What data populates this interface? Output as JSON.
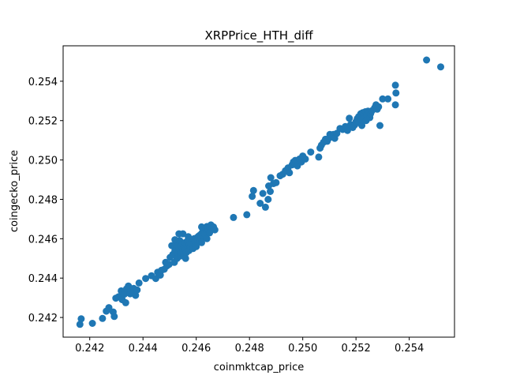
{
  "chart_data": {
    "type": "scatter",
    "title": "XRPPrice_HTH_diff",
    "xlabel": "coinmktcap_price",
    "ylabel": "coingecko_price",
    "xlim": [
      0.241,
      0.2557
    ],
    "ylim": [
      0.241,
      0.2558
    ],
    "xticks": [
      "0.242",
      "0.244",
      "0.246",
      "0.248",
      "0.250",
      "0.252",
      "0.254"
    ],
    "yticks": [
      "0.242",
      "0.244",
      "0.246",
      "0.248",
      "0.250",
      "0.252",
      "0.254"
    ],
    "xtick_values": [
      0.242,
      0.244,
      0.246,
      0.248,
      0.25,
      0.252,
      0.254
    ],
    "ytick_values": [
      0.242,
      0.244,
      0.246,
      0.248,
      0.25,
      0.252,
      0.254
    ],
    "grid": false,
    "marker_color": "#1f77b4",
    "points": [
      [
        0.24163,
        0.24165
      ],
      [
        0.24168,
        0.24193
      ],
      [
        0.2421,
        0.2417
      ],
      [
        0.24248,
        0.24195
      ],
      [
        0.24262,
        0.24232
      ],
      [
        0.24272,
        0.2425
      ],
      [
        0.24288,
        0.24228
      ],
      [
        0.24292,
        0.24205
      ],
      [
        0.24298,
        0.24298
      ],
      [
        0.24308,
        0.24305
      ],
      [
        0.24318,
        0.24335
      ],
      [
        0.24322,
        0.2429
      ],
      [
        0.2433,
        0.24318
      ],
      [
        0.24335,
        0.24275
      ],
      [
        0.24338,
        0.24345
      ],
      [
        0.24345,
        0.2436
      ],
      [
        0.24352,
        0.2432
      ],
      [
        0.2436,
        0.24335
      ],
      [
        0.24365,
        0.24348
      ],
      [
        0.24372,
        0.24312
      ],
      [
        0.24378,
        0.2434
      ],
      [
        0.24385,
        0.24375
      ],
      [
        0.2441,
        0.24398
      ],
      [
        0.24432,
        0.24412
      ],
      [
        0.24448,
        0.24398
      ],
      [
        0.24455,
        0.2443
      ],
      [
        0.24465,
        0.24415
      ],
      [
        0.2447,
        0.2444
      ],
      [
        0.2448,
        0.24445
      ],
      [
        0.24485,
        0.2448
      ],
      [
        0.2449,
        0.24462
      ],
      [
        0.24498,
        0.2447
      ],
      [
        0.24502,
        0.24505
      ],
      [
        0.24508,
        0.24565
      ],
      [
        0.24512,
        0.2452
      ],
      [
        0.24518,
        0.2448
      ],
      [
        0.2452,
        0.2454
      ],
      [
        0.24525,
        0.2457
      ],
      [
        0.24528,
        0.245
      ],
      [
        0.24532,
        0.24525
      ],
      [
        0.24535,
        0.2455
      ],
      [
        0.24538,
        0.2459
      ],
      [
        0.2454,
        0.24512
      ],
      [
        0.24542,
        0.24565
      ],
      [
        0.24545,
        0.2453
      ],
      [
        0.24548,
        0.24575
      ],
      [
        0.2455,
        0.2454
      ],
      [
        0.24553,
        0.2452
      ],
      [
        0.24556,
        0.2456
      ],
      [
        0.24558,
        0.2458
      ],
      [
        0.2456,
        0.24545
      ],
      [
        0.24563,
        0.2453
      ],
      [
        0.24565,
        0.24568
      ],
      [
        0.24568,
        0.2459
      ],
      [
        0.2457,
        0.24555
      ],
      [
        0.24573,
        0.2454
      ],
      [
        0.24575,
        0.24572
      ],
      [
        0.24578,
        0.2456
      ],
      [
        0.24582,
        0.2459
      ],
      [
        0.24585,
        0.2457
      ],
      [
        0.24588,
        0.2455
      ],
      [
        0.24592,
        0.246
      ],
      [
        0.24595,
        0.24585
      ],
      [
        0.24598,
        0.24568
      ],
      [
        0.24602,
        0.24605
      ],
      [
        0.24605,
        0.2459
      ],
      [
        0.24608,
        0.24612
      ],
      [
        0.24612,
        0.24598
      ],
      [
        0.24615,
        0.2462
      ],
      [
        0.24618,
        0.24605
      ],
      [
        0.24622,
        0.2463
      ],
      [
        0.24625,
        0.24615
      ],
      [
        0.24628,
        0.2464
      ],
      [
        0.24632,
        0.24625
      ],
      [
        0.24635,
        0.2465
      ],
      [
        0.2464,
        0.24662
      ],
      [
        0.24645,
        0.24648
      ],
      [
        0.2465,
        0.2466
      ],
      [
        0.24655,
        0.2467
      ],
      [
        0.2466,
        0.2465
      ],
      [
        0.24665,
        0.2466
      ],
      [
        0.2467,
        0.24645
      ],
      [
        0.2456,
        0.245
      ],
      [
        0.24535,
        0.24625
      ],
      [
        0.2455,
        0.24625
      ],
      [
        0.2457,
        0.2461
      ],
      [
        0.2452,
        0.24595
      ],
      [
        0.246,
        0.2456
      ],
      [
        0.2462,
        0.2458
      ],
      [
        0.2464,
        0.246
      ],
      [
        0.2465,
        0.2463
      ],
      [
        0.2462,
        0.2466
      ],
      [
        0.2474,
        0.24708
      ],
      [
        0.2479,
        0.24722
      ],
      [
        0.2481,
        0.24815
      ],
      [
        0.24815,
        0.24845
      ],
      [
        0.2484,
        0.2478
      ],
      [
        0.2485,
        0.2483
      ],
      [
        0.2486,
        0.2476
      ],
      [
        0.2487,
        0.248
      ],
      [
        0.24872,
        0.24868
      ],
      [
        0.24878,
        0.2484
      ],
      [
        0.2488,
        0.2491
      ],
      [
        0.2489,
        0.2488
      ],
      [
        0.249,
        0.24885
      ],
      [
        0.24915,
        0.2492
      ],
      [
        0.24925,
        0.24928
      ],
      [
        0.24935,
        0.24945
      ],
      [
        0.24945,
        0.2496
      ],
      [
        0.2495,
        0.24935
      ],
      [
        0.2496,
        0.24975
      ],
      [
        0.24965,
        0.2499
      ],
      [
        0.24972,
        0.24998
      ],
      [
        0.2498,
        0.2497
      ],
      [
        0.24988,
        0.25005
      ],
      [
        0.24995,
        0.2499
      ],
      [
        0.25,
        0.2502
      ],
      [
        0.2501,
        0.25005
      ],
      [
        0.2503,
        0.2504
      ],
      [
        0.2506,
        0.25015
      ],
      [
        0.25065,
        0.2506
      ],
      [
        0.2507,
        0.25075
      ],
      [
        0.25078,
        0.2509
      ],
      [
        0.25085,
        0.25105
      ],
      [
        0.25092,
        0.25095
      ],
      [
        0.25098,
        0.2511
      ],
      [
        0.25102,
        0.2513
      ],
      [
        0.25108,
        0.25125
      ],
      [
        0.25115,
        0.2513
      ],
      [
        0.2512,
        0.2511
      ],
      [
        0.25128,
        0.25135
      ],
      [
        0.2514,
        0.2516
      ],
      [
        0.2515,
        0.25155
      ],
      [
        0.2516,
        0.2517
      ],
      [
        0.25168,
        0.2515
      ],
      [
        0.25175,
        0.25212
      ],
      [
        0.2518,
        0.2518
      ],
      [
        0.25188,
        0.25165
      ],
      [
        0.25195,
        0.25178
      ],
      [
        0.252,
        0.25195
      ],
      [
        0.25205,
        0.2521
      ],
      [
        0.2521,
        0.2522
      ],
      [
        0.25212,
        0.2519
      ],
      [
        0.25218,
        0.25235
      ],
      [
        0.2522,
        0.25205
      ],
      [
        0.25222,
        0.25175
      ],
      [
        0.25225,
        0.2524
      ],
      [
        0.25228,
        0.25225
      ],
      [
        0.25232,
        0.25212
      ],
      [
        0.25235,
        0.25245
      ],
      [
        0.25238,
        0.252
      ],
      [
        0.2524,
        0.2523
      ],
      [
        0.25245,
        0.25248
      ],
      [
        0.2525,
        0.2524
      ],
      [
        0.25252,
        0.25215
      ],
      [
        0.25255,
        0.25235
      ],
      [
        0.2526,
        0.2525
      ],
      [
        0.2527,
        0.25265
      ],
      [
        0.25275,
        0.2528
      ],
      [
        0.2528,
        0.25258
      ],
      [
        0.25285,
        0.2527
      ],
      [
        0.2529,
        0.25175
      ],
      [
        0.253,
        0.2531
      ],
      [
        0.2532,
        0.2531
      ],
      [
        0.25348,
        0.2528
      ],
      [
        0.2535,
        0.2534
      ],
      [
        0.25348,
        0.2538
      ],
      [
        0.25465,
        0.25508
      ],
      [
        0.25518,
        0.25473
      ]
    ]
  }
}
